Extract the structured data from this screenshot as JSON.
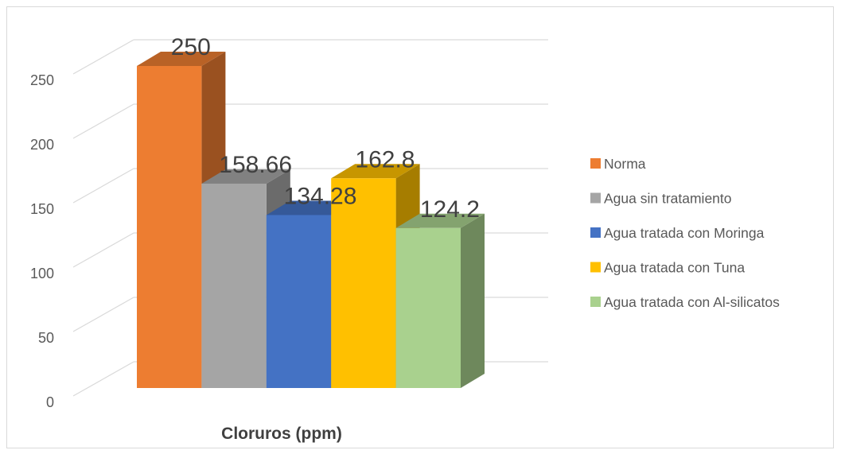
{
  "chart_data": {
    "type": "bar",
    "title": "",
    "xlabel": "Cloruros (ppm)",
    "ylabel": "",
    "ylim": [
      0,
      250
    ],
    "yticks": [
      "0",
      "50",
      "100",
      "150",
      "200",
      "250"
    ],
    "categories": [
      "Cloruros (ppm)"
    ],
    "grid": true,
    "legend_position": "right",
    "series": [
      {
        "name": "Norma",
        "values": [
          250
        ],
        "label": "250",
        "color": "#ED7D31"
      },
      {
        "name": "Agua sin tratamiento",
        "values": [
          158.66
        ],
        "label": "158.66",
        "color": "#A5A5A5"
      },
      {
        "name": "Agua tratada con Moringa",
        "values": [
          134.28
        ],
        "label": "134.28",
        "color": "#4472C4"
      },
      {
        "name": "Agua tratada con Tuna",
        "values": [
          162.8
        ],
        "label": "162.8",
        "color": "#FFC000"
      },
      {
        "name": "Agua tratada con Al-silicatos",
        "values": [
          124.2
        ],
        "label": "124.2",
        "color": "#A9D18E"
      }
    ]
  }
}
